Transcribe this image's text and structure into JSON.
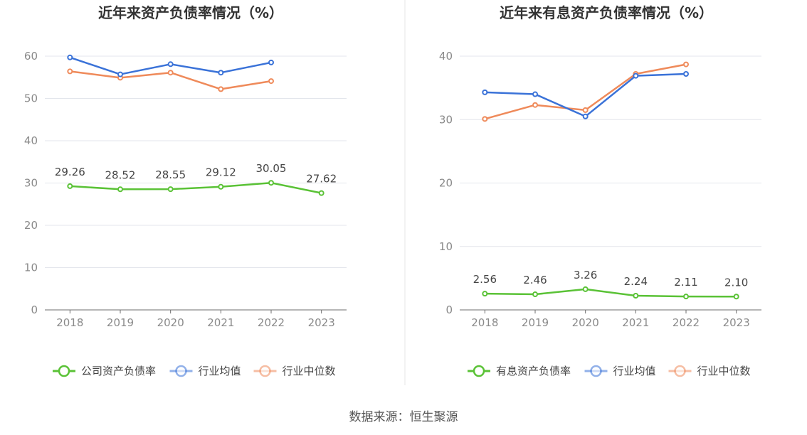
{
  "colors": {
    "company": "#5ac236",
    "industry_avg": "#3a72d8",
    "industry_median": "#ef8a5a",
    "grid": "#e3e6ec",
    "axis": "#6e6e6e",
    "divider": "#e6e6e6"
  },
  "source": "数据来源：恒生聚源",
  "chart_data": [
    {
      "type": "line",
      "title": "近年来资产负债率情况（%）",
      "categories": [
        "2018",
        "2019",
        "2020",
        "2021",
        "2022",
        "2023"
      ],
      "ylim": [
        0,
        60
      ],
      "yticks": [
        0,
        10,
        20,
        30,
        40,
        50,
        60
      ],
      "grid": true,
      "legend_position": "bottom",
      "series": [
        {
          "name": "公司资产负债率",
          "color_key": "company",
          "labeled": true,
          "values": [
            29.26,
            28.52,
            28.55,
            29.12,
            30.05,
            27.62
          ],
          "labels": [
            "29.26",
            "28.52",
            "28.55",
            "29.12",
            "30.05",
            "27.62"
          ]
        },
        {
          "name": "行业均值",
          "color_key": "industry_avg",
          "labeled": false,
          "values": [
            59.7,
            55.7,
            58.1,
            56.1,
            58.5,
            null
          ]
        },
        {
          "name": "行业中位数",
          "color_key": "industry_median",
          "labeled": false,
          "values": [
            56.4,
            54.9,
            56.1,
            52.2,
            54.1,
            null
          ]
        }
      ]
    },
    {
      "type": "line",
      "title": "近年来有息资产负债率情况（%）",
      "categories": [
        "2018",
        "2019",
        "2020",
        "2021",
        "2022",
        "2023"
      ],
      "ylim": [
        0,
        40
      ],
      "yticks": [
        0,
        10,
        20,
        30,
        40
      ],
      "grid": true,
      "legend_position": "bottom",
      "series": [
        {
          "name": "有息资产负债率",
          "color_key": "company",
          "labeled": true,
          "values": [
            2.56,
            2.46,
            3.26,
            2.24,
            2.11,
            2.1
          ],
          "labels": [
            "2.56",
            "2.46",
            "3.26",
            "2.24",
            "2.11",
            "2.10"
          ]
        },
        {
          "name": "行业均值",
          "color_key": "industry_avg",
          "labeled": false,
          "values": [
            34.3,
            34.0,
            30.5,
            36.9,
            37.2,
            null
          ]
        },
        {
          "name": "行业中位数",
          "color_key": "industry_median",
          "labeled": false,
          "values": [
            30.1,
            32.3,
            31.5,
            37.2,
            38.7,
            null
          ]
        }
      ]
    }
  ]
}
